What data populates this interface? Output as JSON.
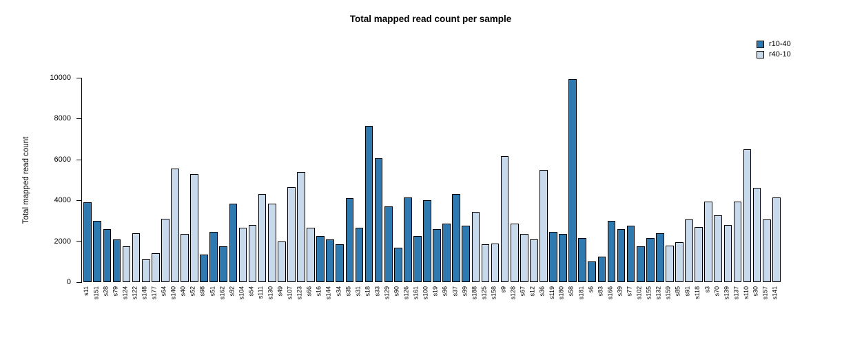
{
  "title": "Total mapped read count per sample",
  "chart_data": {
    "type": "bar",
    "title": "Total mapped read count per sample",
    "xlabel": "",
    "ylabel": "Total mapped read count",
    "ylim": [
      0,
      10000
    ],
    "yticks": [
      0,
      2000,
      4000,
      6000,
      8000,
      10000
    ],
    "grid": false,
    "legend_position": "top-right",
    "legend": [
      {
        "name": "r10-40",
        "color": "#2e79b0"
      },
      {
        "name": "r40-10",
        "color": "#c9d9ec"
      }
    ],
    "bars": [
      {
        "label": "s11",
        "value": 3900,
        "group": "r10-40"
      },
      {
        "label": "s151",
        "value": 3000,
        "group": "r10-40"
      },
      {
        "label": "s28",
        "value": 2600,
        "group": "r10-40"
      },
      {
        "label": "s79",
        "value": 2100,
        "group": "r10-40"
      },
      {
        "label": "s124",
        "value": 1750,
        "group": "r40-10"
      },
      {
        "label": "s122",
        "value": 2400,
        "group": "r40-10"
      },
      {
        "label": "s148",
        "value": 1100,
        "group": "r40-10"
      },
      {
        "label": "s177",
        "value": 1400,
        "group": "r40-10"
      },
      {
        "label": "s64",
        "value": 3100,
        "group": "r40-10"
      },
      {
        "label": "s140",
        "value": 5550,
        "group": "r40-10"
      },
      {
        "label": "s40",
        "value": 2350,
        "group": "r40-10"
      },
      {
        "label": "s52",
        "value": 5300,
        "group": "r40-10"
      },
      {
        "label": "s98",
        "value": 1350,
        "group": "r10-40"
      },
      {
        "label": "s51",
        "value": 2450,
        "group": "r10-40"
      },
      {
        "label": "s162",
        "value": 1750,
        "group": "r10-40"
      },
      {
        "label": "s92",
        "value": 3850,
        "group": "r10-40"
      },
      {
        "label": "s104",
        "value": 2650,
        "group": "r40-10"
      },
      {
        "label": "s54",
        "value": 2800,
        "group": "r40-10"
      },
      {
        "label": "s111",
        "value": 4300,
        "group": "r40-10"
      },
      {
        "label": "s130",
        "value": 3850,
        "group": "r40-10"
      },
      {
        "label": "s49",
        "value": 2000,
        "group": "r40-10"
      },
      {
        "label": "s107",
        "value": 4650,
        "group": "r40-10"
      },
      {
        "label": "s123",
        "value": 5400,
        "group": "r40-10"
      },
      {
        "label": "s66",
        "value": 2650,
        "group": "r40-10"
      },
      {
        "label": "s16",
        "value": 2250,
        "group": "r10-40"
      },
      {
        "label": "s144",
        "value": 2100,
        "group": "r10-40"
      },
      {
        "label": "s34",
        "value": 1850,
        "group": "r10-40"
      },
      {
        "label": "s35",
        "value": 4100,
        "group": "r10-40"
      },
      {
        "label": "s31",
        "value": 2650,
        "group": "r10-40"
      },
      {
        "label": "s18",
        "value": 7650,
        "group": "r10-40"
      },
      {
        "label": "s33",
        "value": 6050,
        "group": "r10-40"
      },
      {
        "label": "s129",
        "value": 3700,
        "group": "r10-40"
      },
      {
        "label": "s90",
        "value": 1700,
        "group": "r10-40"
      },
      {
        "label": "s126",
        "value": 4150,
        "group": "r10-40"
      },
      {
        "label": "s161",
        "value": 2250,
        "group": "r10-40"
      },
      {
        "label": "s100",
        "value": 4000,
        "group": "r10-40"
      },
      {
        "label": "s19",
        "value": 2600,
        "group": "r10-40"
      },
      {
        "label": "s96",
        "value": 2850,
        "group": "r10-40"
      },
      {
        "label": "s37",
        "value": 4300,
        "group": "r10-40"
      },
      {
        "label": "s99",
        "value": 2750,
        "group": "r10-40"
      },
      {
        "label": "s188",
        "value": 3450,
        "group": "r40-10"
      },
      {
        "label": "s125",
        "value": 1850,
        "group": "r40-10"
      },
      {
        "label": "s158",
        "value": 1900,
        "group": "r40-10"
      },
      {
        "label": "s9",
        "value": 6150,
        "group": "r40-10"
      },
      {
        "label": "s128",
        "value": 2850,
        "group": "r40-10"
      },
      {
        "label": "s67",
        "value": 2350,
        "group": "r40-10"
      },
      {
        "label": "s12",
        "value": 2100,
        "group": "r40-10"
      },
      {
        "label": "s36",
        "value": 5500,
        "group": "r40-10"
      },
      {
        "label": "s119",
        "value": 2450,
        "group": "r10-40"
      },
      {
        "label": "s180",
        "value": 2350,
        "group": "r10-40"
      },
      {
        "label": "s58",
        "value": 9950,
        "group": "r10-40"
      },
      {
        "label": "s181",
        "value": 2150,
        "group": "r10-40"
      },
      {
        "label": "s6",
        "value": 1000,
        "group": "r10-40"
      },
      {
        "label": "s83",
        "value": 1250,
        "group": "r10-40"
      },
      {
        "label": "s166",
        "value": 3000,
        "group": "r10-40"
      },
      {
        "label": "s39",
        "value": 2600,
        "group": "r10-40"
      },
      {
        "label": "s77",
        "value": 2750,
        "group": "r10-40"
      },
      {
        "label": "s102",
        "value": 1750,
        "group": "r10-40"
      },
      {
        "label": "s155",
        "value": 2150,
        "group": "r10-40"
      },
      {
        "label": "s132",
        "value": 2400,
        "group": "r10-40"
      },
      {
        "label": "s159",
        "value": 1800,
        "group": "r40-10"
      },
      {
        "label": "s85",
        "value": 1950,
        "group": "r40-10"
      },
      {
        "label": "s91",
        "value": 3050,
        "group": "r40-10"
      },
      {
        "label": "s118",
        "value": 2700,
        "group": "r40-10"
      },
      {
        "label": "s3",
        "value": 3950,
        "group": "r40-10"
      },
      {
        "label": "s70",
        "value": 3250,
        "group": "r40-10"
      },
      {
        "label": "s139",
        "value": 2800,
        "group": "r40-10"
      },
      {
        "label": "s137",
        "value": 3950,
        "group": "r40-10"
      },
      {
        "label": "s110",
        "value": 6500,
        "group": "r40-10"
      },
      {
        "label": "s30",
        "value": 4600,
        "group": "r40-10"
      },
      {
        "label": "s157",
        "value": 3050,
        "group": "r40-10"
      },
      {
        "label": "s141",
        "value": 4150,
        "group": "r40-10"
      }
    ]
  }
}
